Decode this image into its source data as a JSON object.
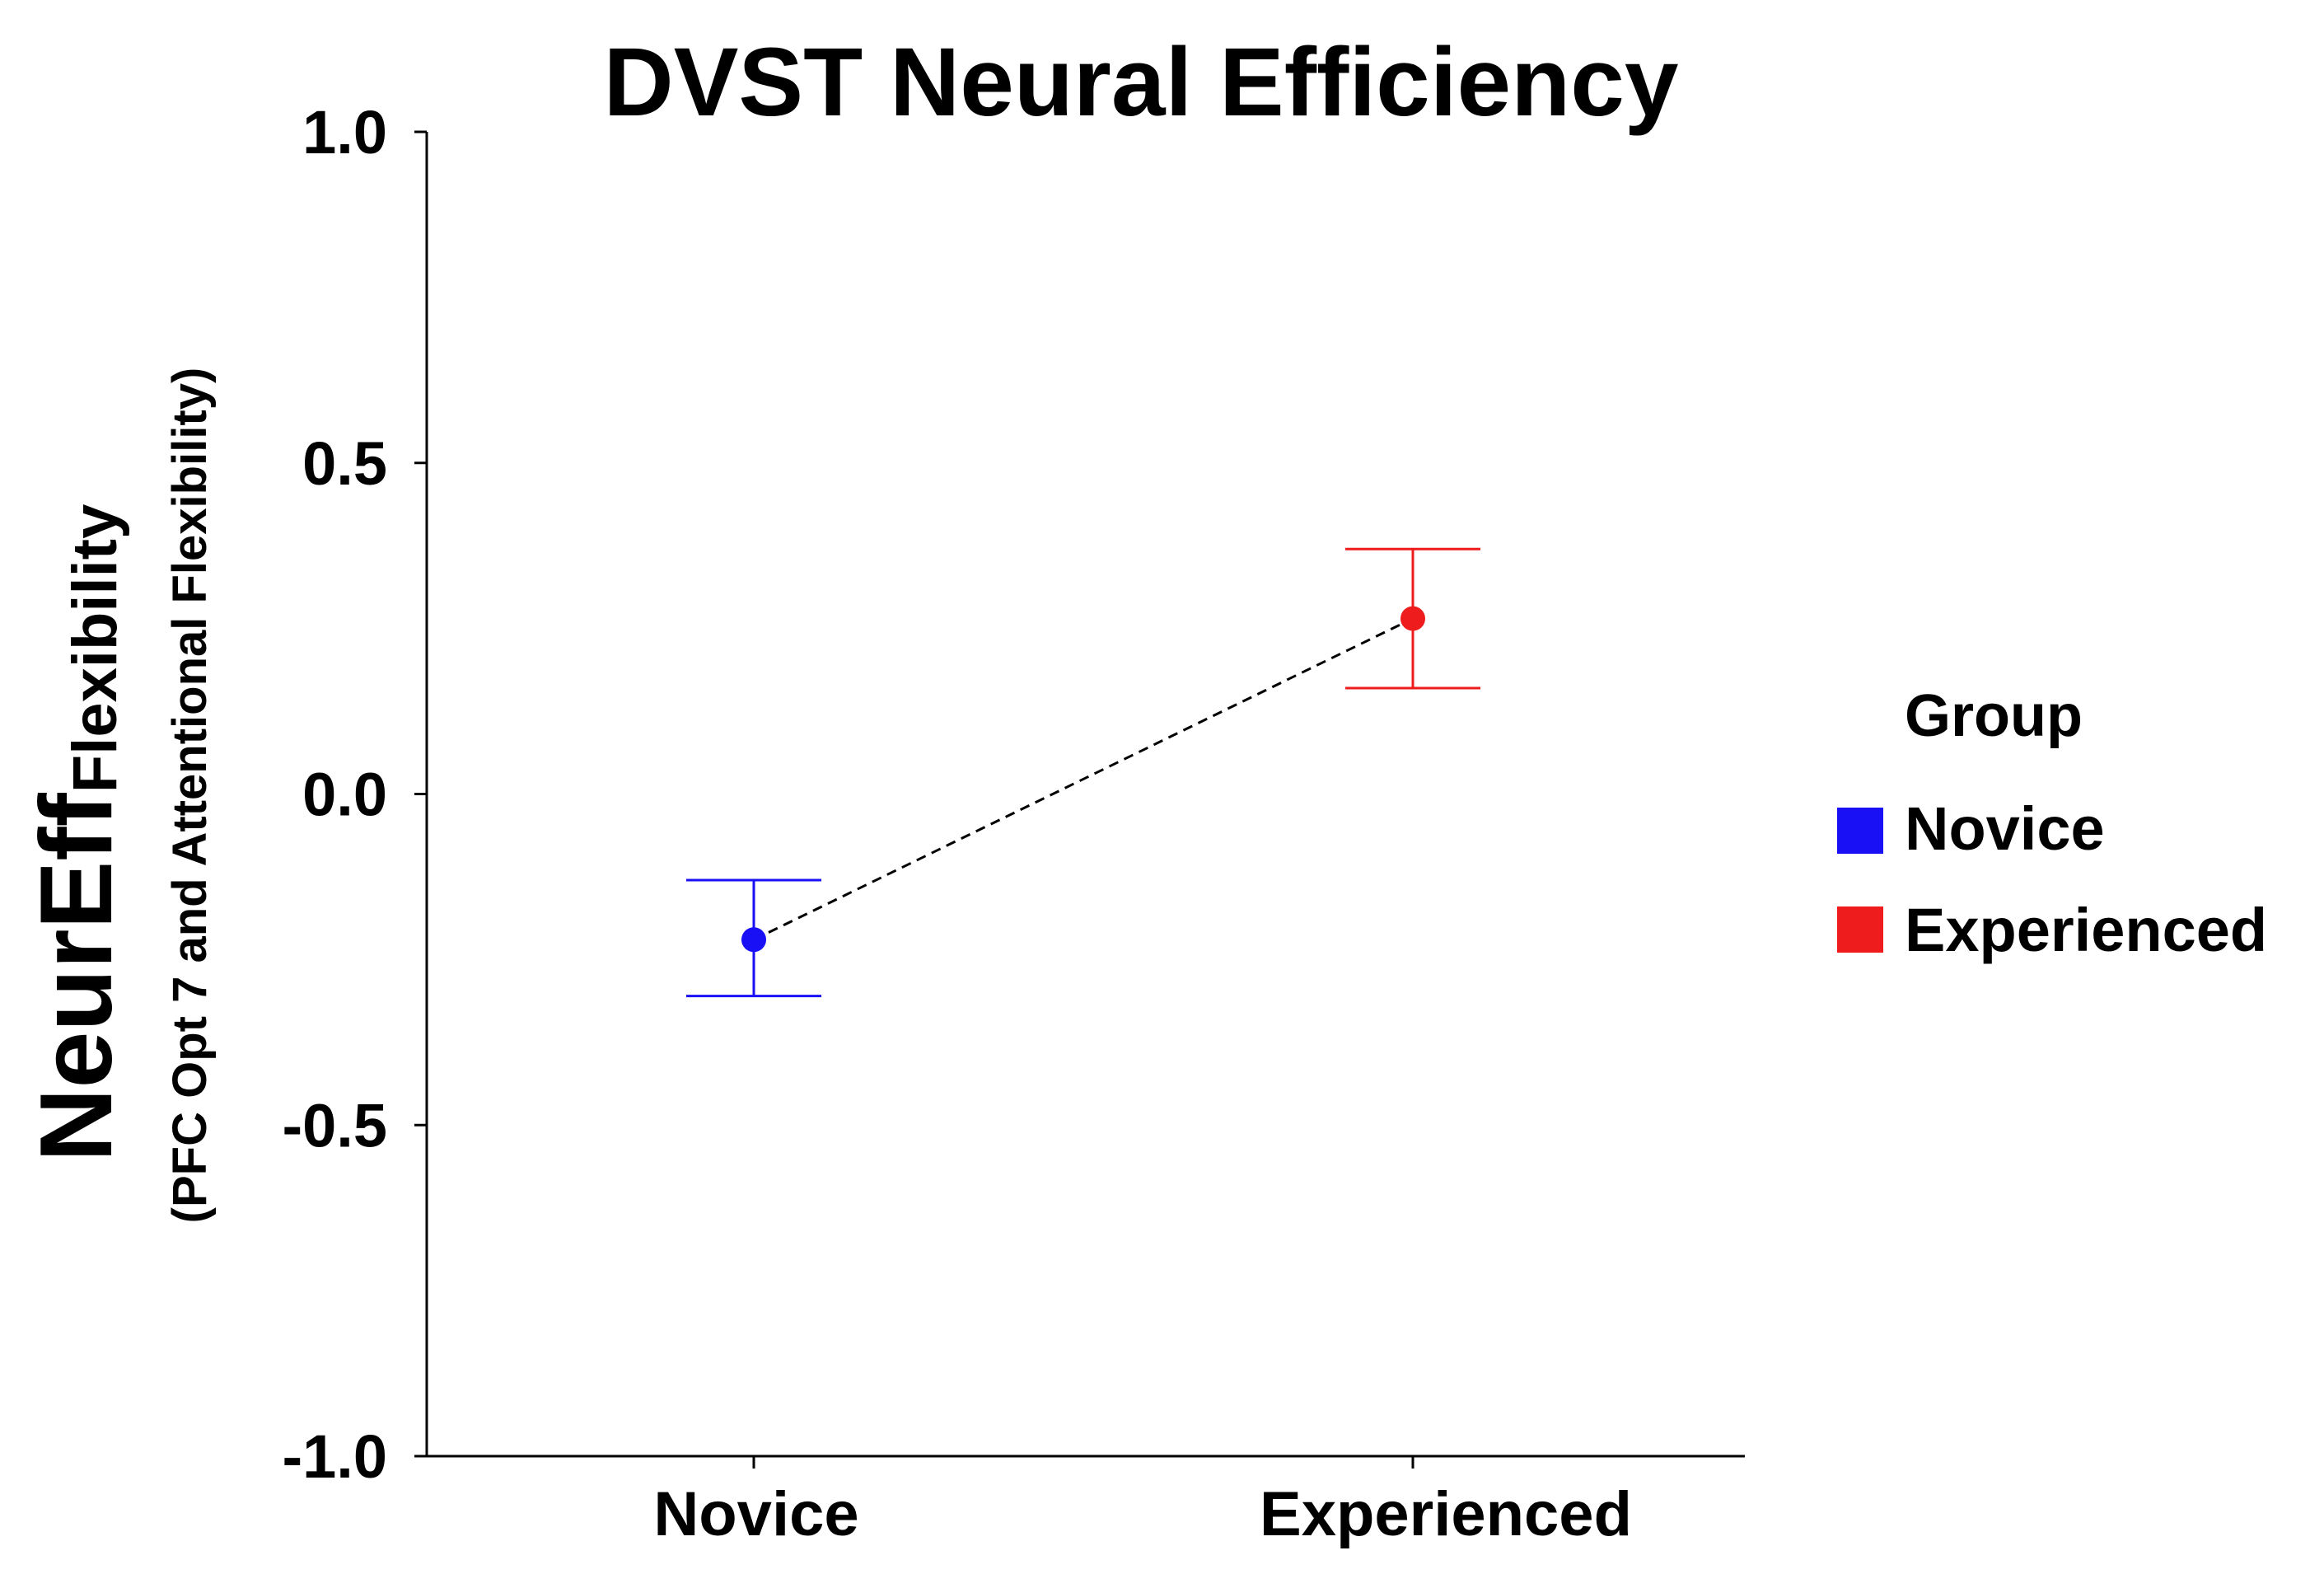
{
  "chart_data": {
    "type": "scatter",
    "title": "DVST Neural Efficiency",
    "xlabel": "",
    "ylabel": {
      "main": "NeurEff",
      "subscript": "Flexibility",
      "detail": "(PFC Opt 7 and Attentional Flexibility)"
    },
    "categories": [
      "Novice",
      "Experienced"
    ],
    "ylim": [
      -1.0,
      1.0
    ],
    "yticks": [
      "1.0",
      "0.5",
      "0.0",
      "-0.5",
      "-1.0"
    ],
    "ytick_values": [
      1.0,
      0.5,
      0.0,
      -0.5,
      -1.0
    ],
    "series": [
      {
        "name": "Novice",
        "color": "#1a10f5",
        "category": "Novice",
        "mean": -0.22,
        "upper": -0.13,
        "lower": -0.305
      },
      {
        "name": "Experienced",
        "color": "#ee1c1c",
        "category": "Experienced",
        "mean": 0.265,
        "upper": 0.37,
        "lower": 0.16
      }
    ],
    "connector": "dashed",
    "legend": {
      "title": "Group",
      "position": "right",
      "items": [
        {
          "label": "Novice",
          "color": "#1a10f5"
        },
        {
          "label": "Experienced",
          "color": "#ee1c1c"
        }
      ]
    }
  }
}
